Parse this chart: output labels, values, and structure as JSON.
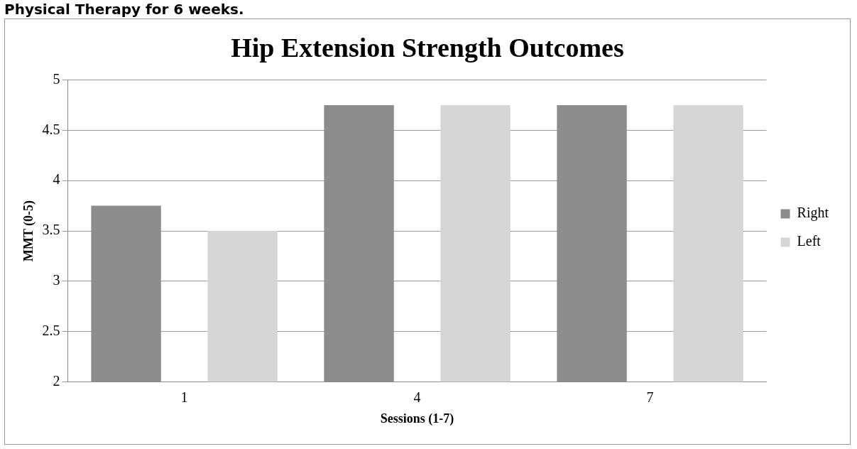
{
  "chart_data": {
    "type": "bar",
    "title": "Hip Extension Strength Outcomes",
    "xlabel": "Sessions (1-7)",
    "ylabel": "MMT (0-5)",
    "annotations": [
      "Physical Therapy for 6 weeks."
    ],
    "categories": [
      "1",
      "4",
      "7"
    ],
    "series": [
      {
        "name": "Right",
        "color": "#8c8c8c",
        "values": [
          3.75,
          4.75,
          4.75
        ]
      },
      {
        "name": "Left",
        "color": "#d6d6d6",
        "values": [
          3.5,
          4.75,
          4.75
        ]
      }
    ],
    "ylim": [
      2,
      5
    ],
    "yticks": [
      2,
      2.5,
      3,
      3.5,
      4,
      4.5,
      5
    ],
    "grid": "y",
    "legend": "right"
  }
}
